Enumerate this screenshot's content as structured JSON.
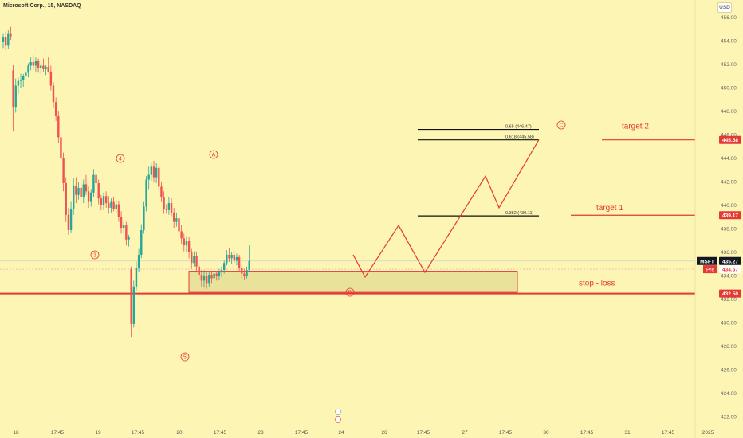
{
  "header": {
    "symbol_title": "Microsoft Corp., 15, NASDAQ",
    "currency_button": "USD"
  },
  "chart_data": {
    "type": "candlestick",
    "y_axis": {
      "min": 422.0,
      "max": 456.0,
      "ticks": [
        456,
        454,
        452,
        450,
        448,
        446,
        444,
        442,
        440,
        438,
        436,
        434,
        432,
        430,
        428,
        426,
        424,
        422
      ],
      "tick_format": "0.00"
    },
    "x_axis": {
      "labels": [
        "18",
        "17:45",
        "19",
        "17:45",
        "20",
        "17:45",
        "23",
        "17:45",
        "24",
        "26",
        "17:45",
        "27",
        "17:45",
        "30",
        "17:45",
        "31",
        "17:45",
        "2025"
      ]
    },
    "candles": [
      {
        "o": 453.9,
        "h": 454.6,
        "l": 453.4,
        "c": 454.3
      },
      {
        "o": 454.3,
        "h": 454.8,
        "l": 453.2,
        "c": 453.6
      },
      {
        "o": 453.6,
        "h": 454.9,
        "l": 453.3,
        "c": 454.6
      },
      {
        "o": 454.6,
        "h": 455.2,
        "l": 454.1,
        "c": 454.4
      },
      {
        "o": 451.5,
        "h": 452.0,
        "l": 446.3,
        "c": 448.4
      },
      {
        "o": 448.4,
        "h": 450.8,
        "l": 447.9,
        "c": 450.2
      },
      {
        "o": 450.2,
        "h": 450.9,
        "l": 449.5,
        "c": 450.6
      },
      {
        "o": 450.6,
        "h": 451.2,
        "l": 450.0,
        "c": 450.7
      },
      {
        "o": 450.7,
        "h": 451.2,
        "l": 450.1,
        "c": 451.0
      },
      {
        "o": 451.0,
        "h": 451.7,
        "l": 450.5,
        "c": 451.3
      },
      {
        "o": 451.3,
        "h": 452.1,
        "l": 450.9,
        "c": 451.9
      },
      {
        "o": 451.9,
        "h": 452.6,
        "l": 451.5,
        "c": 452.2
      },
      {
        "o": 452.2,
        "h": 452.8,
        "l": 451.5,
        "c": 451.9
      },
      {
        "o": 451.9,
        "h": 452.6,
        "l": 451.4,
        "c": 452.3
      },
      {
        "o": 452.3,
        "h": 452.5,
        "l": 451.3,
        "c": 451.7
      },
      {
        "o": 451.7,
        "h": 452.1,
        "l": 451.2,
        "c": 451.9
      },
      {
        "o": 451.9,
        "h": 452.5,
        "l": 451.4,
        "c": 451.6
      },
      {
        "o": 451.6,
        "h": 452.0,
        "l": 451.1,
        "c": 451.8
      },
      {
        "o": 451.8,
        "h": 452.6,
        "l": 451.3,
        "c": 451.4
      },
      {
        "o": 451.4,
        "h": 451.9,
        "l": 449.8,
        "c": 450.2
      },
      {
        "o": 450.2,
        "h": 450.5,
        "l": 448.3,
        "c": 448.8
      },
      {
        "o": 448.8,
        "h": 449.2,
        "l": 447.2,
        "c": 447.6
      },
      {
        "o": 447.6,
        "h": 448.0,
        "l": 445.3,
        "c": 445.8
      },
      {
        "o": 445.8,
        "h": 446.3,
        "l": 443.4,
        "c": 444.0
      },
      {
        "o": 444.0,
        "h": 444.5,
        "l": 441.2,
        "c": 441.9
      },
      {
        "o": 441.9,
        "h": 442.4,
        "l": 438.6,
        "c": 439.2
      },
      {
        "o": 439.2,
        "h": 439.8,
        "l": 437.5,
        "c": 437.9
      },
      {
        "o": 437.9,
        "h": 440.3,
        "l": 437.7,
        "c": 439.7
      },
      {
        "o": 439.7,
        "h": 442.3,
        "l": 439.2,
        "c": 441.7
      },
      {
        "o": 441.7,
        "h": 442.4,
        "l": 440.2,
        "c": 440.9
      },
      {
        "o": 440.9,
        "h": 442.0,
        "l": 440.5,
        "c": 441.5
      },
      {
        "o": 441.5,
        "h": 442.0,
        "l": 440.1,
        "c": 440.7
      },
      {
        "o": 440.7,
        "h": 442.2,
        "l": 440.2,
        "c": 441.8
      },
      {
        "o": 441.8,
        "h": 442.6,
        "l": 440.9,
        "c": 441.2
      },
      {
        "o": 441.2,
        "h": 441.6,
        "l": 439.8,
        "c": 440.3
      },
      {
        "o": 440.3,
        "h": 441.4,
        "l": 439.9,
        "c": 441.1
      },
      {
        "o": 441.1,
        "h": 443.1,
        "l": 440.7,
        "c": 442.6
      },
      {
        "o": 442.6,
        "h": 442.9,
        "l": 441.3,
        "c": 441.9
      },
      {
        "o": 441.9,
        "h": 442.2,
        "l": 440.1,
        "c": 440.6
      },
      {
        "o": 440.6,
        "h": 440.9,
        "l": 439.6,
        "c": 440.0
      },
      {
        "o": 440.0,
        "h": 441.1,
        "l": 439.6,
        "c": 440.8
      },
      {
        "o": 440.8,
        "h": 441.2,
        "l": 439.8,
        "c": 440.2
      },
      {
        "o": 440.2,
        "h": 440.8,
        "l": 439.3,
        "c": 439.8
      },
      {
        "o": 439.8,
        "h": 440.6,
        "l": 439.4,
        "c": 440.3
      },
      {
        "o": 440.3,
        "h": 440.7,
        "l": 439.5,
        "c": 439.7
      },
      {
        "o": 439.7,
        "h": 440.5,
        "l": 439.4,
        "c": 440.1
      },
      {
        "o": 440.1,
        "h": 440.4,
        "l": 438.6,
        "c": 439.0
      },
      {
        "o": 439.0,
        "h": 439.5,
        "l": 437.6,
        "c": 438.1
      },
      {
        "o": 438.1,
        "h": 438.7,
        "l": 437.6,
        "c": 438.3
      },
      {
        "o": 438.3,
        "h": 438.6,
        "l": 436.6,
        "c": 437.1
      },
      {
        "o": 437.1,
        "h": 437.5,
        "l": 436.5,
        "c": 437.3
      },
      {
        "o": 434.6,
        "h": 434.8,
        "l": 428.8,
        "c": 429.9
      },
      {
        "o": 429.9,
        "h": 433.6,
        "l": 429.6,
        "c": 433.1
      },
      {
        "o": 433.1,
        "h": 435.2,
        "l": 432.7,
        "c": 434.7
      },
      {
        "o": 434.7,
        "h": 436.3,
        "l": 434.3,
        "c": 435.8
      },
      {
        "o": 435.8,
        "h": 438.4,
        "l": 435.5,
        "c": 437.9
      },
      {
        "o": 437.9,
        "h": 440.3,
        "l": 437.6,
        "c": 439.9
      },
      {
        "o": 439.9,
        "h": 442.5,
        "l": 439.5,
        "c": 442.2
      },
      {
        "o": 442.2,
        "h": 443.3,
        "l": 441.4,
        "c": 442.6
      },
      {
        "o": 442.6,
        "h": 443.6,
        "l": 442.1,
        "c": 443.3
      },
      {
        "o": 443.3,
        "h": 443.8,
        "l": 442.0,
        "c": 442.4
      },
      {
        "o": 442.4,
        "h": 443.6,
        "l": 441.9,
        "c": 443.2
      },
      {
        "o": 443.2,
        "h": 443.5,
        "l": 441.2,
        "c": 441.6
      },
      {
        "o": 441.6,
        "h": 442.0,
        "l": 440.3,
        "c": 440.7
      },
      {
        "o": 440.7,
        "h": 441.2,
        "l": 439.3,
        "c": 439.7
      },
      {
        "o": 439.7,
        "h": 440.1,
        "l": 439.3,
        "c": 439.6
      },
      {
        "o": 439.6,
        "h": 440.7,
        "l": 439.2,
        "c": 440.2
      },
      {
        "o": 440.2,
        "h": 440.6,
        "l": 439.1,
        "c": 439.4
      },
      {
        "o": 439.4,
        "h": 439.8,
        "l": 438.1,
        "c": 438.6
      },
      {
        "o": 438.6,
        "h": 439.4,
        "l": 438.2,
        "c": 438.9
      },
      {
        "o": 438.9,
        "h": 439.3,
        "l": 437.4,
        "c": 437.8
      },
      {
        "o": 437.8,
        "h": 438.3,
        "l": 436.7,
        "c": 437.2
      },
      {
        "o": 437.2,
        "h": 437.6,
        "l": 436.1,
        "c": 436.6
      },
      {
        "o": 436.6,
        "h": 437.4,
        "l": 436.0,
        "c": 437.0
      },
      {
        "o": 437.0,
        "h": 437.3,
        "l": 435.5,
        "c": 436.0
      },
      {
        "o": 436.0,
        "h": 436.3,
        "l": 434.6,
        "c": 435.1
      },
      {
        "o": 435.1,
        "h": 436.1,
        "l": 434.8,
        "c": 435.7
      },
      {
        "o": 435.7,
        "h": 436.0,
        "l": 434.3,
        "c": 434.8
      },
      {
        "o": 434.8,
        "h": 435.1,
        "l": 433.6,
        "c": 434.1
      },
      {
        "o": 434.1,
        "h": 434.5,
        "l": 433.1,
        "c": 433.6
      },
      {
        "o": 433.6,
        "h": 434.5,
        "l": 433.0,
        "c": 434.0
      },
      {
        "o": 434.0,
        "h": 434.3,
        "l": 432.9,
        "c": 433.4
      },
      {
        "o": 433.4,
        "h": 434.3,
        "l": 433.1,
        "c": 434.1
      },
      {
        "o": 434.1,
        "h": 434.4,
        "l": 433.4,
        "c": 433.8
      },
      {
        "o": 433.8,
        "h": 434.5,
        "l": 433.3,
        "c": 434.2
      },
      {
        "o": 434.2,
        "h": 434.4,
        "l": 433.6,
        "c": 434.0
      },
      {
        "o": 434.0,
        "h": 434.6,
        "l": 433.7,
        "c": 434.3
      },
      {
        "o": 434.3,
        "h": 434.8,
        "l": 433.9,
        "c": 434.5
      },
      {
        "o": 434.5,
        "h": 435.3,
        "l": 434.2,
        "c": 435.1
      },
      {
        "o": 435.1,
        "h": 436.2,
        "l": 434.9,
        "c": 435.8
      },
      {
        "o": 435.8,
        "h": 436.4,
        "l": 435.2,
        "c": 435.5
      },
      {
        "o": 435.5,
        "h": 436.0,
        "l": 435.0,
        "c": 435.8
      },
      {
        "o": 435.8,
        "h": 436.1,
        "l": 435.1,
        "c": 435.3
      },
      {
        "o": 435.3,
        "h": 435.9,
        "l": 434.9,
        "c": 435.6
      },
      {
        "o": 435.6,
        "h": 435.8,
        "l": 434.3,
        "c": 434.7
      },
      {
        "o": 434.7,
        "h": 435.0,
        "l": 433.8,
        "c": 434.2
      },
      {
        "o": 434.2,
        "h": 434.6,
        "l": 433.7,
        "c": 434.0
      },
      {
        "o": 434.0,
        "h": 434.8,
        "l": 433.8,
        "c": 434.5
      },
      {
        "o": 434.5,
        "h": 436.6,
        "l": 434.3,
        "c": 435.27
      }
    ],
    "wave_labels": [
      "3",
      "4",
      "5",
      "A",
      "B",
      "C"
    ],
    "fib_levels": [
      {
        "label": "0.65 (446.47)",
        "value": 446.47
      },
      {
        "label": "0.618 (445.58)",
        "value": 445.58
      },
      {
        "label": "0.382 (439.11)",
        "value": 439.11
      }
    ],
    "projected_path": [
      {
        "x": "24",
        "y": 435.8
      },
      {
        "x": "24",
        "y": 433.9
      },
      {
        "x": "26",
        "y": 438.3
      },
      {
        "x": "26",
        "y": 434.3
      },
      {
        "x": "27",
        "y": 439.2
      },
      {
        "x": "27",
        "y": 442.5
      },
      {
        "x": "27",
        "y": 439.8
      },
      {
        "x": "30",
        "y": 445.6
      }
    ],
    "support_zone": {
      "top": 434.4,
      "bottom": 432.6
    },
    "targets": [
      {
        "label": "target 2",
        "value": 445.58
      },
      {
        "label": "target 1",
        "value": 439.17
      },
      {
        "label": "stop - loss",
        "value": 432.5
      }
    ],
    "price_tags": {
      "current": {
        "symbol": "MSFT",
        "value": "435.27"
      },
      "pre": {
        "label": "Pre",
        "value": "434.57"
      },
      "target2": "445.58",
      "target1": "439.17",
      "stop": "432.50"
    }
  }
}
